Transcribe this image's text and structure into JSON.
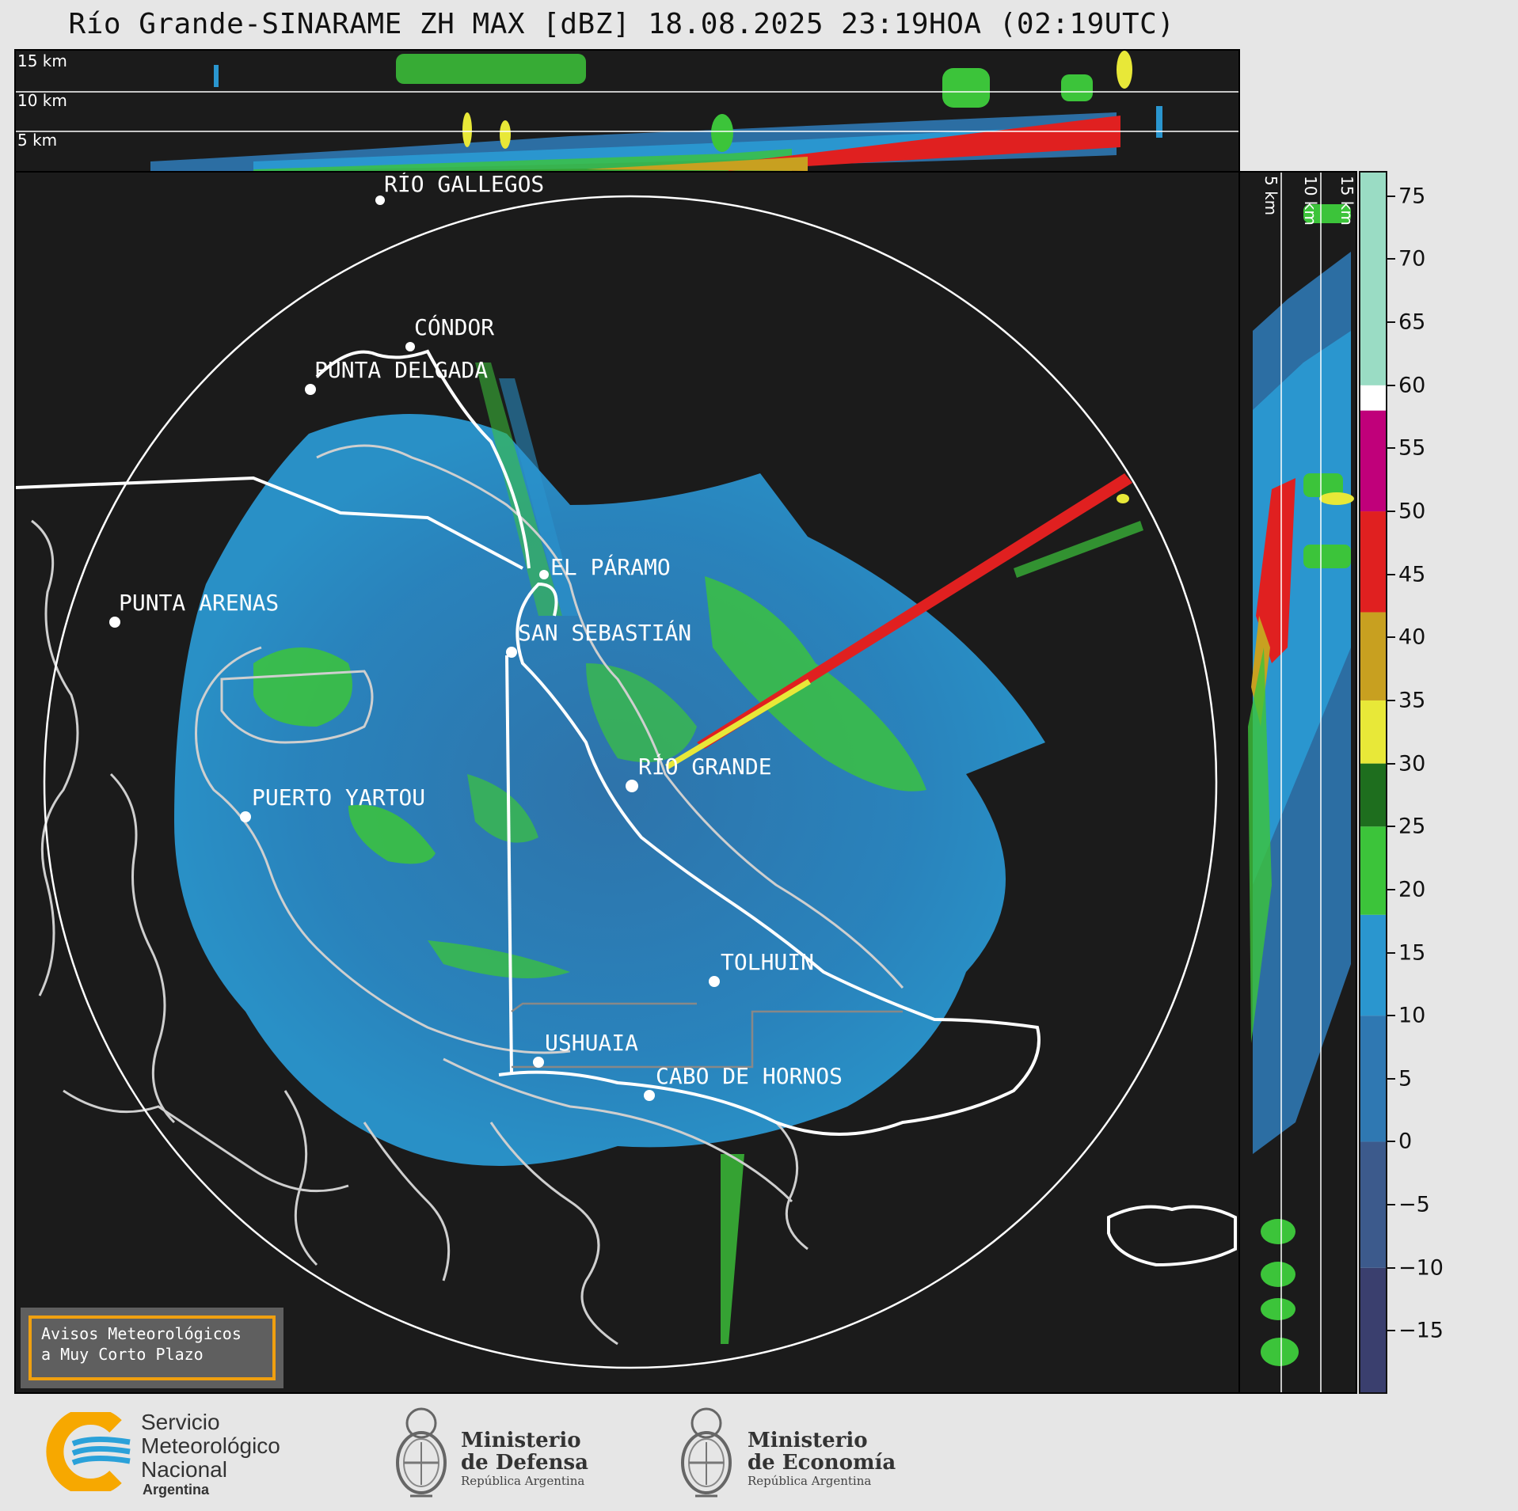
{
  "title": "Río Grande-SINARAME ZH MAX [dBZ] 18.08.2025 23:19HOA (02:19UTC)",
  "top_panel": {
    "altitude_labels": [
      "15 km",
      "10 km",
      "5 km"
    ]
  },
  "side_panel": {
    "altitude_labels": [
      "5 km",
      "10 km",
      "15 km"
    ]
  },
  "cities": [
    {
      "name": "RÍO GALLEGOS"
    },
    {
      "name": "CÓNDOR"
    },
    {
      "name": "PUNTA DELGADA"
    },
    {
      "name": "EL PÁRAMO"
    },
    {
      "name": "PUNTA ARENAS"
    },
    {
      "name": "SAN SEBASTIÁN"
    },
    {
      "name": "RÍO GRANDE"
    },
    {
      "name": "PUERTO YARTOU"
    },
    {
      "name": "TOLHUIN"
    },
    {
      "name": "USHUAIA"
    },
    {
      "name": "CABO DE HORNOS"
    }
  ],
  "alert_box": {
    "line1": "Avisos Meteorológicos",
    "line2": "a Muy Corto Plazo"
  },
  "colorbar": {
    "unit": "dBZ",
    "range": [
      -20,
      77
    ],
    "ticks": [
      "75",
      "70",
      "65",
      "60",
      "55",
      "50",
      "45",
      "40",
      "35",
      "30",
      "25",
      "20",
      "15",
      "10",
      "5",
      "0",
      "−5",
      "−10",
      "−15"
    ],
    "tick_values": [
      75,
      70,
      65,
      60,
      55,
      50,
      45,
      40,
      35,
      30,
      25,
      20,
      15,
      10,
      5,
      0,
      -5,
      -10,
      -15
    ],
    "colors": [
      {
        "from": -20,
        "to": -10,
        "color": "#3a3f6e"
      },
      {
        "from": -10,
        "to": 0,
        "color": "#3c5a8c"
      },
      {
        "from": 0,
        "to": 10,
        "color": "#2f78b2"
      },
      {
        "from": 10,
        "to": 18,
        "color": "#2a96cf"
      },
      {
        "from": 18,
        "to": 25,
        "color": "#3cc43a"
      },
      {
        "from": 25,
        "to": 30,
        "color": "#1e6e1e"
      },
      {
        "from": 30,
        "to": 35,
        "color": "#e8e838"
      },
      {
        "from": 35,
        "to": 42,
        "color": "#c8a020"
      },
      {
        "from": 42,
        "to": 50,
        "color": "#e02020"
      },
      {
        "from": 50,
        "to": 58,
        "color": "#c0007a"
      },
      {
        "from": 58,
        "to": 60,
        "color": "#ffffff"
      },
      {
        "from": 60,
        "to": 77,
        "color": "#9adcc4"
      }
    ]
  },
  "logos": {
    "smn": {
      "line1": "Servicio",
      "line2": "Meteorológico",
      "line3": "Nacional",
      "country": "Argentina"
    },
    "defensa": {
      "line1": "Ministerio",
      "line2": "de Defensa",
      "country": "República Argentina"
    },
    "economia": {
      "line1": "Ministerio",
      "line2": "de Economía",
      "country": "República Argentina"
    }
  },
  "colors": {
    "background": "#1b1b1b",
    "coast": "#cfcfcf",
    "border": "#ffffff",
    "smn_orange": "#f7a800",
    "smn_blue": "#2aa1d9"
  }
}
